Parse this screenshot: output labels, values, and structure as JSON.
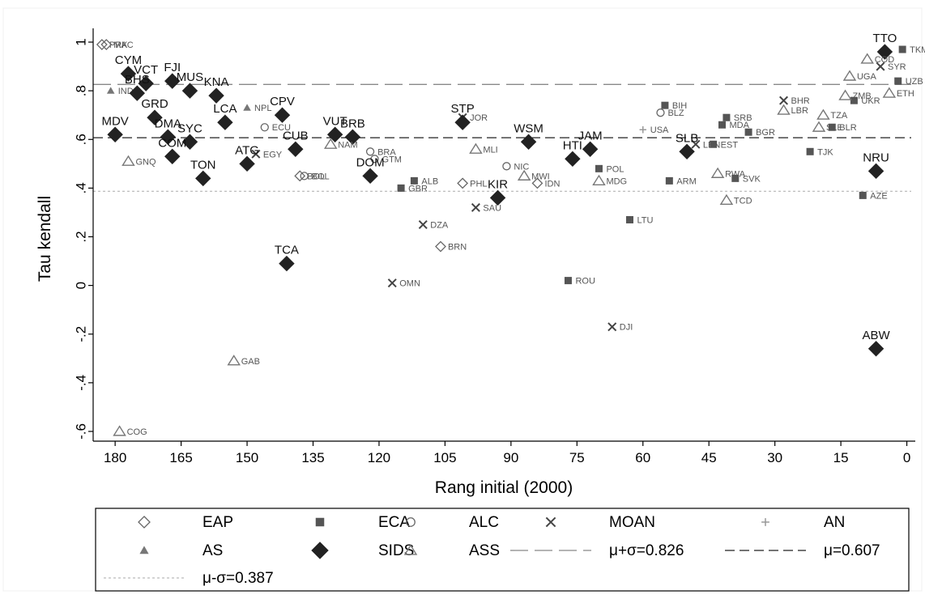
{
  "chart_data": {
    "type": "scatter",
    "xlabel": "Rang initial (2000)",
    "ylabel": "Tau kendall",
    "xlim": [
      185,
      -1
    ],
    "ylim": [
      -0.64,
      1.04
    ],
    "x_reversed": true,
    "x_ticks": [
      180,
      165,
      150,
      135,
      120,
      105,
      90,
      75,
      60,
      45,
      30,
      15,
      0
    ],
    "x_tick_labels": [
      "180",
      "165",
      "150",
      "135",
      "120",
      "105",
      "90",
      "75",
      "60",
      "45",
      "30",
      "15",
      "0"
    ],
    "y_ticks": [
      1,
      0.8,
      0.6,
      0.4,
      0.2,
      0,
      -0.2,
      -0.4,
      -0.6
    ],
    "y_tick_labels": [
      "1",
      ".8",
      ".6",
      ".4",
      ".2",
      "0",
      "-.2",
      "-.4",
      "-.6"
    ],
    "grid": false,
    "legend_position": "bottom",
    "reference_lines": [
      {
        "label": "μ+σ=0.826",
        "value": 0.826,
        "style": "long-dash",
        "color": "#888888"
      },
      {
        "label": "μ=0.607",
        "value": 0.607,
        "style": "dash",
        "color": "#222222"
      },
      {
        "label": "μ-σ=0.387",
        "value": 0.387,
        "style": "dot",
        "color": "#aaaaaa"
      }
    ],
    "series": [
      {
        "name": "EAP",
        "marker": "diamond-open",
        "color": "#666666",
        "points": [
          {
            "x": 183,
            "y": 0.99,
            "label": "PRK"
          },
          {
            "x": 182,
            "y": 0.99,
            "label": "MAC"
          },
          {
            "x": 138,
            "y": 0.45,
            "label": "BOL"
          },
          {
            "x": 106,
            "y": 0.16,
            "label": "BRN"
          },
          {
            "x": 101,
            "y": 0.42,
            "label": "PHL"
          },
          {
            "x": 84,
            "y": 0.42,
            "label": "IDN"
          }
        ]
      },
      {
        "name": "ECA",
        "marker": "square",
        "color": "#555555",
        "points": [
          {
            "x": 112,
            "y": 0.43,
            "label": "ALB"
          },
          {
            "x": 115,
            "y": 0.4,
            "label": "GBR"
          },
          {
            "x": 77,
            "y": 0.02,
            "label": "ROU"
          },
          {
            "x": 70,
            "y": 0.48,
            "label": "POL"
          },
          {
            "x": 63,
            "y": 0.27,
            "label": "LTU"
          },
          {
            "x": 54,
            "y": 0.43,
            "label": "ARM"
          },
          {
            "x": 55,
            "y": 0.74,
            "label": "BIH"
          },
          {
            "x": 41,
            "y": 0.69,
            "label": "SRB"
          },
          {
            "x": 36,
            "y": 0.63,
            "label": "BGR"
          },
          {
            "x": 44,
            "y": 0.58,
            "label": "EST"
          },
          {
            "x": 22,
            "y": 0.55,
            "label": "TJK"
          },
          {
            "x": 39,
            "y": 0.44,
            "label": "SVK"
          },
          {
            "x": 10,
            "y": 0.37,
            "label": "AZE"
          },
          {
            "x": 12,
            "y": 0.76,
            "label": "UKR"
          },
          {
            "x": 1,
            "y": 0.97,
            "label": "TKM"
          },
          {
            "x": 2,
            "y": 0.84,
            "label": "UZB"
          },
          {
            "x": 17,
            "y": 0.65,
            "label": "BLR"
          },
          {
            "x": 42,
            "y": 0.66,
            "label": "MDA"
          }
        ]
      },
      {
        "name": "ALC",
        "marker": "circle-open",
        "color": "#666666",
        "points": [
          {
            "x": 137,
            "y": 0.45,
            "label": "BOL"
          },
          {
            "x": 122,
            "y": 0.55,
            "label": "BRA"
          },
          {
            "x": 121,
            "y": 0.52,
            "label": "GTM"
          },
          {
            "x": 91,
            "y": 0.49,
            "label": "NIC"
          },
          {
            "x": 146,
            "y": 0.65,
            "label": "ECU"
          },
          {
            "x": 56,
            "y": 0.71,
            "label": "BLZ"
          }
        ]
      },
      {
        "name": "MOAN",
        "marker": "x",
        "color": "#444444",
        "points": [
          {
            "x": 148,
            "y": 0.54,
            "label": "EGY"
          },
          {
            "x": 110,
            "y": 0.25,
            "label": "DZA"
          },
          {
            "x": 117,
            "y": 0.01,
            "label": "OMN"
          },
          {
            "x": 98,
            "y": 0.32,
            "label": "SAU"
          },
          {
            "x": 67,
            "y": -0.17,
            "label": "DJI"
          },
          {
            "x": 101,
            "y": 0.69,
            "label": "JOR"
          },
          {
            "x": 6,
            "y": 0.9,
            "label": "SYR"
          },
          {
            "x": 28,
            "y": 0.76,
            "label": "BHR"
          },
          {
            "x": 48,
            "y": 0.58,
            "label": "LBN"
          }
        ]
      },
      {
        "name": "AN",
        "marker": "plus",
        "color": "#999999",
        "points": [
          {
            "x": 60,
            "y": 0.64,
            "label": "USA"
          }
        ]
      },
      {
        "name": "AS",
        "marker": "triangle",
        "color": "#777777",
        "points": [
          {
            "x": 181,
            "y": 0.8,
            "label": "IND"
          },
          {
            "x": 150,
            "y": 0.73,
            "label": "NPL"
          }
        ]
      },
      {
        "name": "SIDS",
        "marker": "diamond",
        "color": "#222222",
        "points": [
          {
            "x": 177,
            "y": 0.87,
            "label": "CYM"
          },
          {
            "x": 173,
            "y": 0.83,
            "label": "VCT"
          },
          {
            "x": 175,
            "y": 0.79,
            "label": "BHS"
          },
          {
            "x": 167,
            "y": 0.84,
            "label": "FJI"
          },
          {
            "x": 163,
            "y": 0.8,
            "label": "MUS"
          },
          {
            "x": 171,
            "y": 0.69,
            "label": "GRD"
          },
          {
            "x": 180,
            "y": 0.62,
            "label": "MDV"
          },
          {
            "x": 168,
            "y": 0.61,
            "label": "DMA"
          },
          {
            "x": 163,
            "y": 0.59,
            "label": "SYC"
          },
          {
            "x": 167,
            "y": 0.53,
            "label": "COM"
          },
          {
            "x": 160,
            "y": 0.44,
            "label": "TON"
          },
          {
            "x": 155,
            "y": 0.67,
            "label": "LCA"
          },
          {
            "x": 157,
            "y": 0.78,
            "label": "KNA"
          },
          {
            "x": 150,
            "y": 0.5,
            "label": "ATG"
          },
          {
            "x": 142,
            "y": 0.7,
            "label": "CPV"
          },
          {
            "x": 139,
            "y": 0.56,
            "label": "CUB"
          },
          {
            "x": 141,
            "y": 0.09,
            "label": "TCA"
          },
          {
            "x": 130,
            "y": 0.62,
            "label": "VUT"
          },
          {
            "x": 126,
            "y": 0.61,
            "label": "BRB"
          },
          {
            "x": 122,
            "y": 0.45,
            "label": "DOM"
          },
          {
            "x": 101,
            "y": 0.67,
            "label": "STP"
          },
          {
            "x": 93,
            "y": 0.36,
            "label": "KIR"
          },
          {
            "x": 86,
            "y": 0.59,
            "label": "WSM"
          },
          {
            "x": 76,
            "y": 0.52,
            "label": "HTI"
          },
          {
            "x": 72,
            "y": 0.56,
            "label": "JAM"
          },
          {
            "x": 50,
            "y": 0.55,
            "label": "SLB"
          },
          {
            "x": 7,
            "y": 0.47,
            "label": "NRU"
          },
          {
            "x": 5,
            "y": 0.96,
            "label": "TTO"
          },
          {
            "x": 7,
            "y": -0.26,
            "label": "ABW"
          }
        ]
      },
      {
        "name": "ASS",
        "marker": "triangle-open",
        "color": "#777777",
        "points": [
          {
            "x": 177,
            "y": 0.51,
            "label": "GNQ"
          },
          {
            "x": 179,
            "y": -0.6,
            "label": "COG"
          },
          {
            "x": 153,
            "y": -0.31,
            "label": "GAB"
          },
          {
            "x": 131,
            "y": 0.58,
            "label": "NAM"
          },
          {
            "x": 70,
            "y": 0.43,
            "label": "MDG"
          },
          {
            "x": 43,
            "y": 0.46,
            "label": "RWA"
          },
          {
            "x": 41,
            "y": 0.35,
            "label": "TCD"
          },
          {
            "x": 20,
            "y": 0.65,
            "label": "SLE"
          },
          {
            "x": 13,
            "y": 0.86,
            "label": "UGA"
          },
          {
            "x": 9,
            "y": 0.93,
            "label": "COD"
          },
          {
            "x": 14,
            "y": 0.78,
            "label": "ZMB"
          },
          {
            "x": 19,
            "y": 0.7,
            "label": "TZA"
          },
          {
            "x": 4,
            "y": 0.79,
            "label": "ETH"
          },
          {
            "x": 28,
            "y": 0.72,
            "label": "LBR"
          },
          {
            "x": 98,
            "y": 0.56,
            "label": "MLI"
          },
          {
            "x": 87,
            "y": 0.45,
            "label": "MWI"
          }
        ]
      }
    ]
  }
}
